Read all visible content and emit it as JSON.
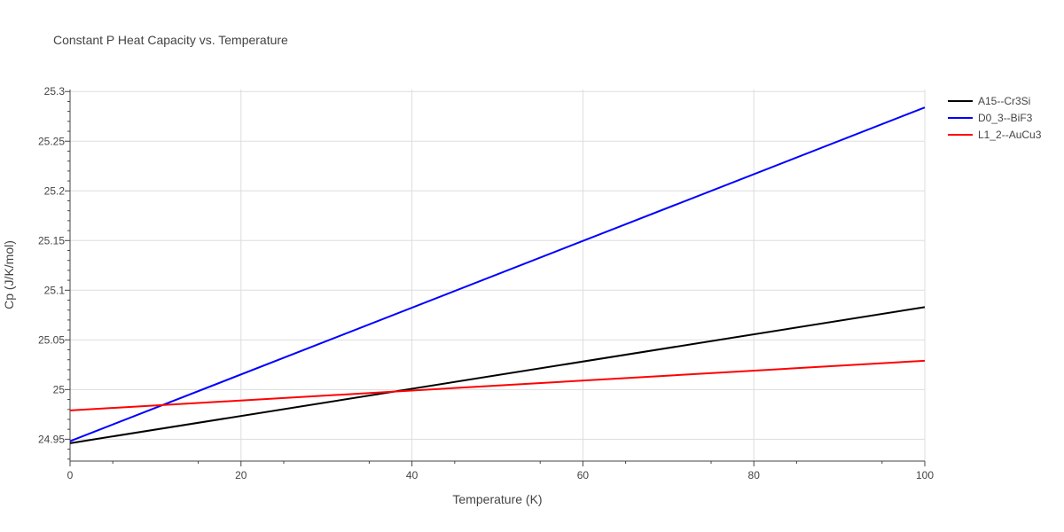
{
  "chart_data": {
    "type": "line",
    "title": "Constant P Heat Capacity vs. Temperature",
    "xlabel": "Temperature (K)",
    "ylabel": "Cp (J/K/mol)",
    "xlim": [
      0,
      100
    ],
    "ylim": [
      24.928,
      25.302
    ],
    "x_ticks": [
      0,
      20,
      40,
      60,
      80,
      100
    ],
    "y_ticks": [
      24.95,
      25,
      25.05,
      25.1,
      25.15,
      25.2,
      25.25,
      25.3
    ],
    "y_tick_labels": [
      "24.95",
      "25",
      "25.05",
      "25.1",
      "25.15",
      "25.2",
      "25.25",
      "25.3"
    ],
    "grid": true,
    "legend_position": "top-right",
    "series": [
      {
        "name": "A15--Cr3Si",
        "color": "#000000",
        "x": [
          0,
          100
        ],
        "y": [
          24.946,
          25.083
        ]
      },
      {
        "name": "D0_3--BiF3",
        "color": "#0000ff",
        "x": [
          0,
          100
        ],
        "y": [
          24.948,
          25.284
        ]
      },
      {
        "name": "L1_2--AuCu3",
        "color": "#ff0000",
        "x": [
          0,
          100
        ],
        "y": [
          24.979,
          25.029
        ]
      }
    ]
  }
}
